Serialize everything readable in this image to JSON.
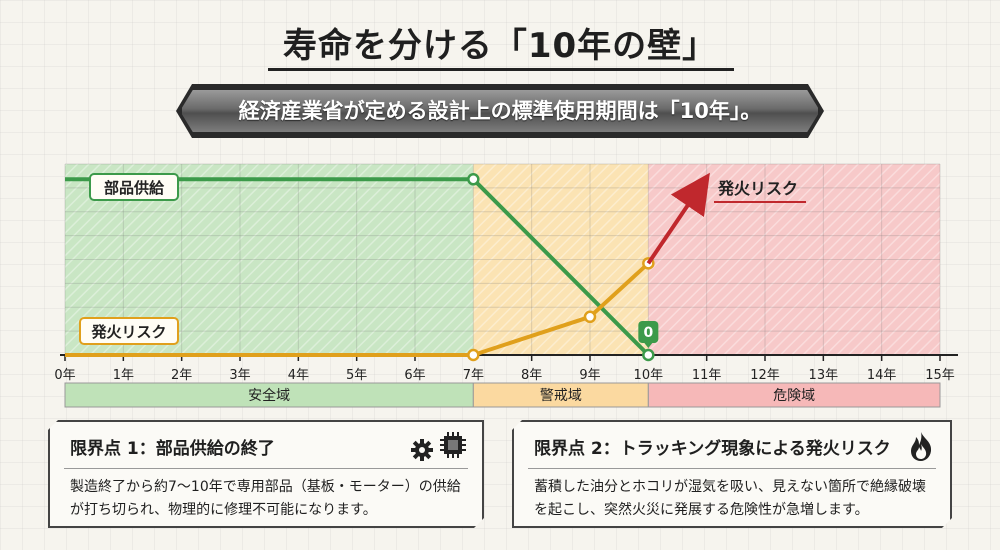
{
  "header": {
    "title": "寿命を分ける「10年の壁」",
    "banner": "経済産業省が定める設計上の標準使用期間は「10年」。"
  },
  "chart_data": {
    "type": "line",
    "x_ticks": [
      "0年",
      "1年",
      "2年",
      "3年",
      "4年",
      "5年",
      "6年",
      "7年",
      "8年",
      "9年",
      "10年",
      "11年",
      "12年",
      "13年",
      "14年",
      "15年"
    ],
    "xlim": [
      0,
      15
    ],
    "ylim": [
      0,
      100
    ],
    "grid": true,
    "zones": [
      {
        "label": "安全域",
        "from": 0,
        "to": 7,
        "color": "#c9e6c4",
        "bar_color": "#bfe2b8"
      },
      {
        "label": "警戒域",
        "from": 7,
        "to": 10,
        "color": "#fbe3b3",
        "bar_color": "#fbd9a0"
      },
      {
        "label": "危険域",
        "from": 10,
        "to": 15,
        "color": "#f7c9c9",
        "bar_color": "#f6b8b8"
      }
    ],
    "series": [
      {
        "name": "部品供給",
        "color": "#3c9a4a",
        "points": [
          [
            0,
            92
          ],
          [
            7,
            92
          ],
          [
            10,
            0
          ]
        ]
      },
      {
        "name": "発火リスク",
        "color": "#e0a01c",
        "points": [
          [
            0,
            0
          ],
          [
            7,
            0
          ],
          [
            9,
            20
          ],
          [
            10,
            48
          ]
        ]
      }
    ],
    "risk_arrow": {
      "label": "発火リスク",
      "color": "#c0282d",
      "from": [
        10,
        48
      ],
      "to": [
        11,
        92
      ]
    },
    "zero_marker": "0"
  },
  "panels": {
    "left": {
      "title": "限界点 1：部品供給の終了",
      "text": "製造終了から約7〜10年で専用部品（基板・モーター）の供給が打ち切られ、物理的に修理不可能になります。",
      "icons": [
        "gear-icon",
        "chip-icon"
      ]
    },
    "right": {
      "title": "限界点 2：トラッキング現象による発火リスク",
      "text": "蓄積した油分とホコリが湿気を吸い、見えない箇所で絶縁破壊を起こし、突然火災に発展する危険性が急増します。",
      "icons": [
        "fire-icon"
      ]
    }
  }
}
